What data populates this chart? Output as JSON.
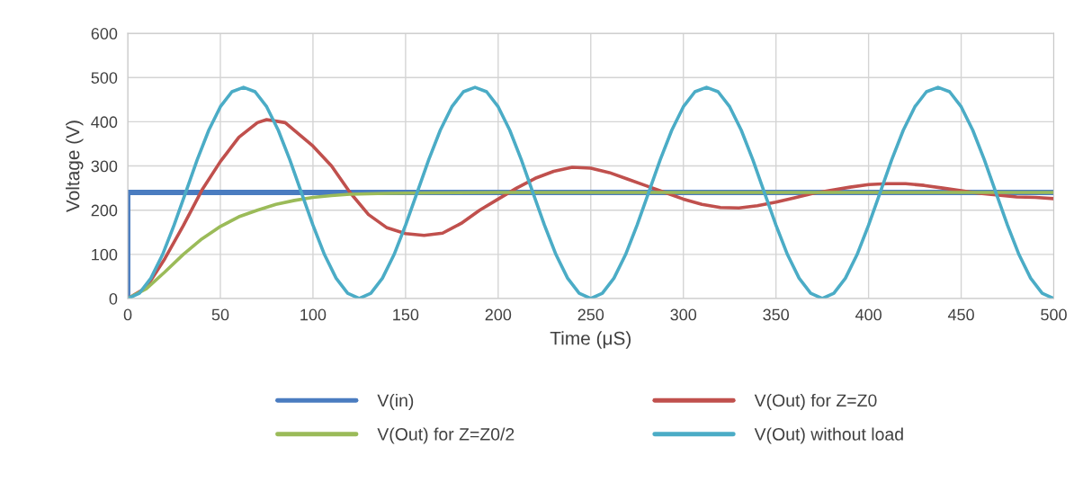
{
  "chart_data": {
    "type": "line",
    "xlabel": "Time (μS)",
    "ylabel": "Voltage (V)",
    "xlim": [
      0,
      500
    ],
    "xticks": [
      0,
      50,
      100,
      150,
      200,
      250,
      300,
      350,
      400,
      450,
      500
    ],
    "ylim": [
      0,
      600
    ],
    "yticks": [
      0,
      100,
      200,
      300,
      400,
      500,
      600
    ],
    "grid": true,
    "legend": "bottom",
    "marker": "none",
    "line_style": "solid",
    "series": [
      {
        "name": "V(in)",
        "color": "#4a7cc0",
        "x": [
          0,
          0,
          500
        ],
        "values": [
          0,
          240,
          240
        ]
      },
      {
        "name": "V(Out) for Z=Z0",
        "color": "#c0504d",
        "x": [
          0,
          10,
          20,
          30,
          40,
          50,
          60,
          70,
          75,
          85,
          100,
          110,
          120,
          130,
          140,
          150,
          160,
          170,
          180,
          190,
          200,
          210,
          220,
          230,
          240,
          250,
          260,
          270,
          280,
          290,
          300,
          310,
          320,
          330,
          340,
          350,
          360,
          370,
          380,
          390,
          400,
          410,
          420,
          430,
          440,
          450,
          460,
          470,
          480,
          490,
          500
        ],
        "values": [
          0,
          25,
          90,
          165,
          245,
          310,
          365,
          398,
          405,
          398,
          345,
          300,
          240,
          190,
          160,
          147,
          143,
          148,
          170,
          200,
          225,
          250,
          272,
          288,
          297,
          295,
          285,
          270,
          255,
          240,
          225,
          213,
          206,
          205,
          210,
          218,
          228,
          238,
          245,
          252,
          258,
          260,
          260,
          256,
          250,
          244,
          238,
          234,
          230,
          229,
          226
        ]
      },
      {
        "name": "V(Out) for Z=Z0/2",
        "color": "#9bbb59",
        "x": [
          0,
          10,
          20,
          30,
          40,
          50,
          60,
          70,
          80,
          90,
          100,
          110,
          120,
          140,
          160,
          200,
          300,
          400,
          500
        ],
        "values": [
          0,
          22,
          60,
          100,
          135,
          163,
          185,
          200,
          213,
          222,
          229,
          233,
          236,
          238,
          239,
          240,
          240,
          240,
          240
        ]
      },
      {
        "name": "V(Out) without load",
        "color": "#4bacc6",
        "x": [
          0,
          6.25,
          12.5,
          18.75,
          25,
          31.25,
          37.5,
          43.75,
          50,
          56.25,
          62.5,
          68.75,
          75,
          81.25,
          87.5,
          93.75,
          100,
          106.25,
          112.5,
          118.75,
          125,
          131.25,
          137.5,
          143.75,
          150,
          156.25,
          162.5,
          168.75,
          175,
          181.25,
          187.5,
          193.75,
          200,
          206.25,
          212.5,
          218.75,
          225,
          231.25,
          237.5,
          243.75,
          250,
          256.25,
          262.5,
          268.75,
          275,
          281.25,
          287.5,
          293.75,
          300,
          306.25,
          312.5,
          318.75,
          325,
          331.25,
          337.5,
          343.75,
          350,
          356.25,
          362.5,
          368.75,
          375,
          381.25,
          387.5,
          393.75,
          400,
          406.25,
          412.5,
          418.75,
          425,
          431.25,
          437.5,
          443.75,
          450,
          456.25,
          462.5,
          468.75,
          475,
          481.25,
          487.5,
          493.75,
          500
        ],
        "values": [
          0,
          12,
          46,
          99,
          166,
          240,
          314,
          381,
          434,
          468,
          478,
          468,
          434,
          381,
          314,
          240,
          166,
          99,
          46,
          12,
          0,
          12,
          46,
          99,
          166,
          240,
          314,
          381,
          434,
          468,
          478,
          468,
          434,
          381,
          314,
          240,
          166,
          99,
          46,
          12,
          0,
          12,
          46,
          99,
          166,
          240,
          314,
          381,
          434,
          468,
          478,
          468,
          434,
          381,
          314,
          240,
          166,
          99,
          46,
          12,
          0,
          12,
          46,
          99,
          166,
          240,
          314,
          381,
          434,
          468,
          478,
          468,
          434,
          381,
          314,
          240,
          166,
          99,
          46,
          12,
          0
        ]
      }
    ]
  }
}
